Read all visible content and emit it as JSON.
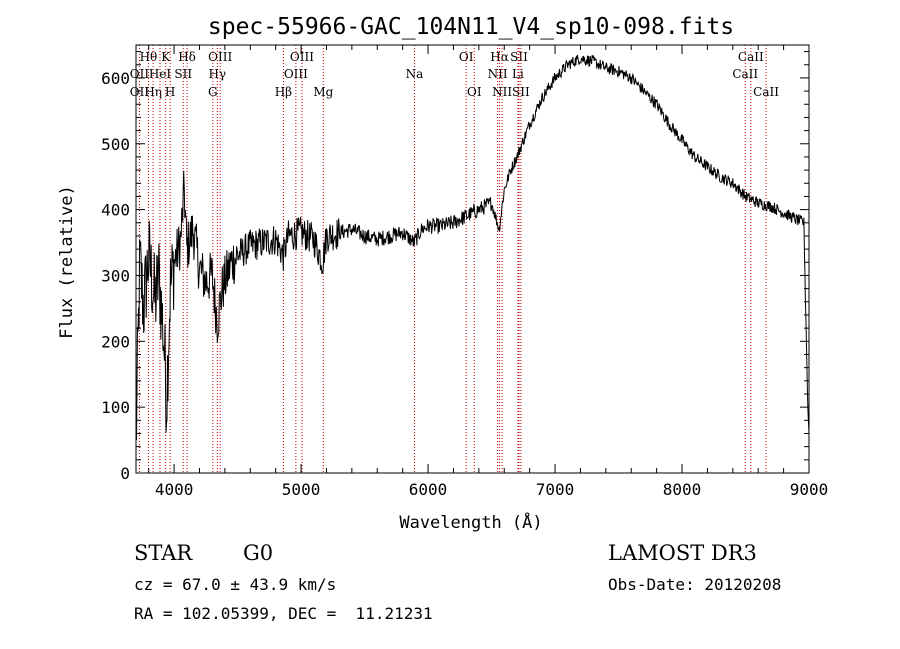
{
  "chart_data": {
    "type": "line",
    "title": "spec-55966-GAC_104N11_V4_sp10-098.fits",
    "xlabel": "Wavelength (Å)",
    "ylabel": "Flux (relative)",
    "xlim": [
      3700,
      9000
    ],
    "ylim": [
      0,
      650
    ],
    "xticks": [
      4000,
      5000,
      6000,
      7000,
      8000,
      9000
    ],
    "yticks": [
      0,
      100,
      200,
      300,
      400,
      500,
      600
    ],
    "grid": false,
    "series": [
      {
        "name": "spectrum",
        "points": [
          [
            3700,
            40
          ],
          [
            3730,
            320
          ],
          [
            3760,
            250
          ],
          [
            3800,
            330
          ],
          [
            3850,
            260
          ],
          [
            3880,
            300
          ],
          [
            3920,
            200
          ],
          [
            3940,
            110
          ],
          [
            3970,
            280
          ],
          [
            4000,
            320
          ],
          [
            4050,
            350
          ],
          [
            4080,
            430
          ],
          [
            4100,
            340
          ],
          [
            4150,
            370
          ],
          [
            4200,
            310
          ],
          [
            4250,
            290
          ],
          [
            4300,
            300
          ],
          [
            4340,
            230
          ],
          [
            4380,
            280
          ],
          [
            4450,
            320
          ],
          [
            4500,
            330
          ],
          [
            4600,
            345
          ],
          [
            4700,
            350
          ],
          [
            4800,
            355
          ],
          [
            4860,
            330
          ],
          [
            4900,
            360
          ],
          [
            5000,
            365
          ],
          [
            5100,
            355
          ],
          [
            5170,
            320
          ],
          [
            5200,
            360
          ],
          [
            5300,
            365
          ],
          [
            5400,
            370
          ],
          [
            5500,
            360
          ],
          [
            5600,
            355
          ],
          [
            5700,
            360
          ],
          [
            5800,
            365
          ],
          [
            5890,
            350
          ],
          [
            5950,
            370
          ],
          [
            6000,
            375
          ],
          [
            6100,
            375
          ],
          [
            6200,
            380
          ],
          [
            6300,
            390
          ],
          [
            6400,
            400
          ],
          [
            6500,
            410
          ],
          [
            6560,
            370
          ],
          [
            6600,
            430
          ],
          [
            6650,
            460
          ],
          [
            6700,
            480
          ],
          [
            6800,
            530
          ],
          [
            6900,
            570
          ],
          [
            7000,
            600
          ],
          [
            7100,
            620
          ],
          [
            7200,
            630
          ],
          [
            7300,
            625
          ],
          [
            7400,
            615
          ],
          [
            7500,
            610
          ],
          [
            7600,
            600
          ],
          [
            7700,
            580
          ],
          [
            7800,
            560
          ],
          [
            7900,
            530
          ],
          [
            8000,
            505
          ],
          [
            8100,
            480
          ],
          [
            8200,
            465
          ],
          [
            8300,
            450
          ],
          [
            8400,
            440
          ],
          [
            8500,
            420
          ],
          [
            8600,
            410
          ],
          [
            8700,
            405
          ],
          [
            8800,
            395
          ],
          [
            8900,
            385
          ],
          [
            8960,
            380
          ],
          [
            8990,
            100
          ],
          [
            9000,
            60
          ]
        ]
      }
    ],
    "lines": [
      {
        "name": "Hθ",
        "wl": 3798,
        "row": 1
      },
      {
        "name": "OII",
        "wl": 3727,
        "row": 2
      },
      {
        "name": "OII",
        "wl": 3727,
        "row": 3
      },
      {
        "name": "Hη",
        "wl": 3835,
        "row": 3
      },
      {
        "name": "HeI",
        "wl": 3889,
        "row": 2
      },
      {
        "name": "K",
        "wl": 3934,
        "row": 1
      },
      {
        "name": "H",
        "wl": 3969,
        "row": 3
      },
      {
        "name": "SII",
        "wl": 4072,
        "row": 2
      },
      {
        "name": "Hδ",
        "wl": 4102,
        "row": 1
      },
      {
        "name": "OIII",
        "wl": 4363,
        "row": 1
      },
      {
        "name": "Hγ",
        "wl": 4340,
        "row": 2
      },
      {
        "name": "G",
        "wl": 4305,
        "row": 3
      },
      {
        "name": "Hβ",
        "wl": 4861,
        "row": 3
      },
      {
        "name": "OIII",
        "wl": 5007,
        "row": 1
      },
      {
        "name": "OIII",
        "wl": 4959,
        "row": 2
      },
      {
        "name": "Mg",
        "wl": 5175,
        "row": 3
      },
      {
        "name": "Na",
        "wl": 5893,
        "row": 2
      },
      {
        "name": "OI",
        "wl": 6300,
        "row": 1
      },
      {
        "name": "OI",
        "wl": 6364,
        "row": 3
      },
      {
        "name": "Hα",
        "wl": 6563,
        "row": 1
      },
      {
        "name": "NII",
        "wl": 6548,
        "row": 2
      },
      {
        "name": "NII",
        "wl": 6583,
        "row": 3
      },
      {
        "name": "SII",
        "wl": 6716,
        "row": 1
      },
      {
        "name": "Li",
        "wl": 6708,
        "row": 2
      },
      {
        "name": "SII",
        "wl": 6731,
        "row": 3
      },
      {
        "name": "CaII",
        "wl": 8542,
        "row": 1
      },
      {
        "name": "CaII",
        "wl": 8498,
        "row": 2
      },
      {
        "name": "CaII",
        "wl": 8662,
        "row": 3
      }
    ]
  },
  "info": {
    "class": "STAR",
    "subclass": "G0",
    "survey": "LAMOST DR3",
    "cz": "cz = 67.0 ± 43.9 km/s",
    "obs_date": "Obs-Date: 20120208",
    "coords": "RA = 102.05399, DEC =  11.21231"
  }
}
